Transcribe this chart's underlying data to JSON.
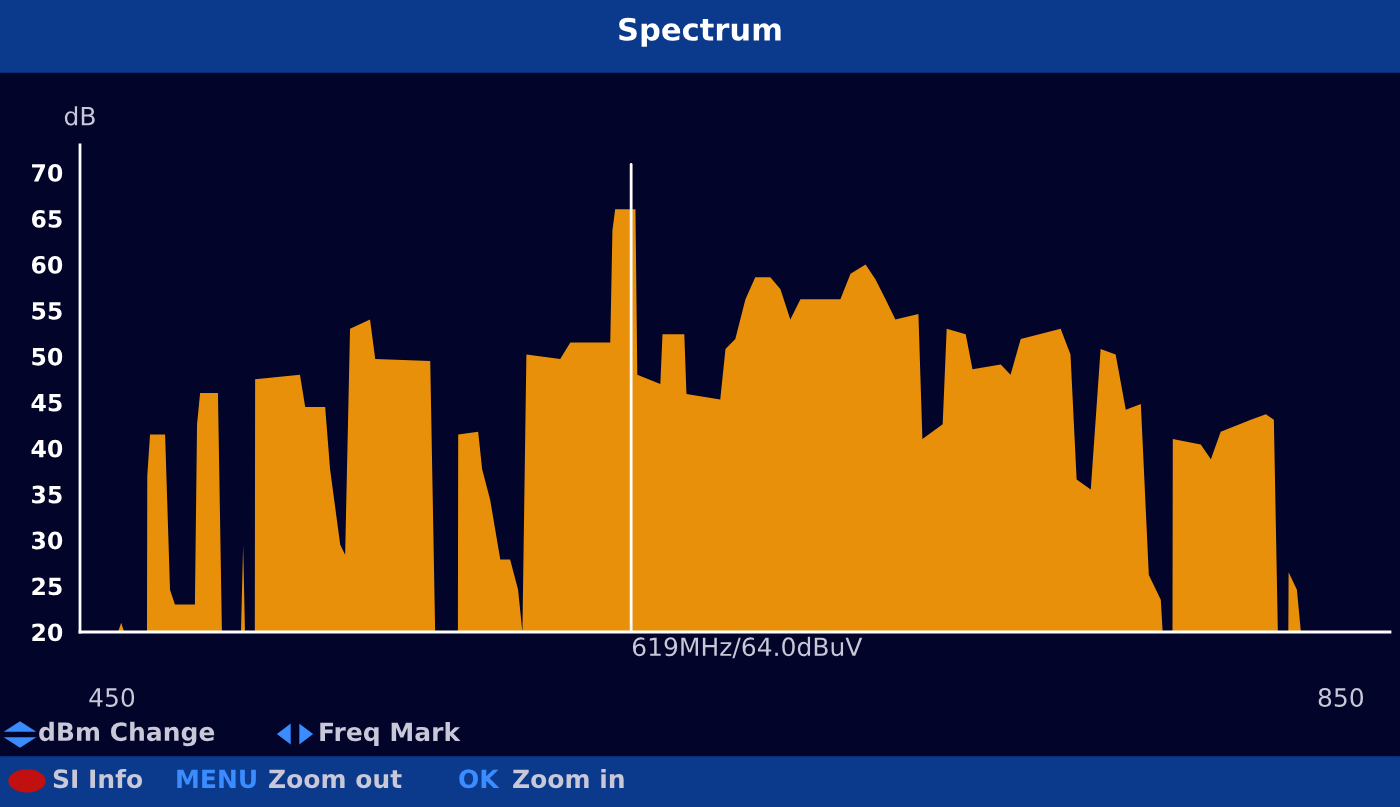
{
  "chart_data": {
    "type": "area",
    "title": "Spectrum",
    "ylabel": "dB",
    "x": [
      440,
      452,
      453,
      454,
      461.4,
      461.5,
      462.4,
      467.3,
      468.9,
      470.5,
      477,
      477.7,
      478.7,
      484.5,
      485.8,
      492,
      492.7,
      493.3,
      496.5,
      496.6,
      511.2,
      512.9,
      519.4,
      521,
      524.3,
      525.9,
      527.5,
      534,
      535.7,
      553.6,
      555.2,
      562.6,
      562.7,
      569.2,
      570.5,
      573.1,
      576.4,
      579.6,
      582.2,
      583.6,
      584.9,
      595.9,
      599.2,
      612.2,
      612.9,
      613.8,
      620.4,
      621,
      628.5,
      629.2,
      636.3,
      637,
      648,
      649.7,
      652.9,
      656.2,
      659.4,
      664.3,
      667.6,
      670.8,
      674.1,
      687.1,
      690.4,
      695.3,
      698.5,
      701.8,
      705,
      712.5,
      713.8,
      720.4,
      721.7,
      727.9,
      730.1,
      739.3,
      742.5,
      745.8,
      758.8,
      762,
      764,
      768.6,
      771.8,
      776.7,
      780,
      784.9,
      787.5,
      791.4,
      792,
      795.2,
      795.3,
      804.4,
      807.7,
      810.9,
      820.7,
      825.6,
      828.2,
      829.5,
      832.9,
      833,
      835.7,
      837,
      866
    ],
    "series": [
      {
        "color": "#e8900a",
        "values": [
          20,
          20,
          21,
          20,
          20,
          37,
          41.5,
          41.5,
          24.6,
          23,
          23,
          42.6,
          46,
          46,
          20,
          20,
          29.5,
          20,
          20,
          47.5,
          48,
          44.5,
          44.5,
          37.7,
          29.5,
          28.4,
          53,
          54,
          49.7,
          49.5,
          20,
          20,
          41.5,
          41.8,
          37.7,
          34.4,
          27.9,
          27.9,
          24.6,
          20,
          50.2,
          49.7,
          51.5,
          51.5,
          63.7,
          66,
          66,
          48,
          47,
          52.4,
          52.4,
          45.9,
          45.3,
          50.8,
          51.9,
          56.2,
          58.6,
          58.6,
          57.3,
          54,
          56.2,
          56.2,
          59,
          60,
          58.4,
          56.2,
          54,
          54.6,
          41,
          42.6,
          53,
          52.4,
          48.6,
          49.1,
          48,
          51.9,
          53,
          50.2,
          36.6,
          35.5,
          50.8,
          50.2,
          44.2,
          44.8,
          26.2,
          23.5,
          20,
          20,
          41,
          40.4,
          38.8,
          41.8,
          43.1,
          43.7,
          43.1,
          20,
          20,
          26.5,
          24.6,
          20,
          20
        ]
      }
    ],
    "xlim": [
      439.6,
      866
    ],
    "xticks": [
      450,
      850
    ],
    "ylim": [
      20,
      73
    ],
    "yticks": [
      20,
      25,
      30,
      35,
      40,
      45,
      50,
      55,
      60,
      65,
      70
    ],
    "grid": false,
    "ref_lines": [
      {
        "axis": "x",
        "value": 619,
        "label": "619MHz/64.0dBuV",
        "color": "#ffffff"
      }
    ],
    "annotations": [
      "dBm Change",
      "Freq Mark",
      "SI Info",
      "MENU",
      "Zoom out",
      "OK",
      "Zoom in"
    ]
  }
}
